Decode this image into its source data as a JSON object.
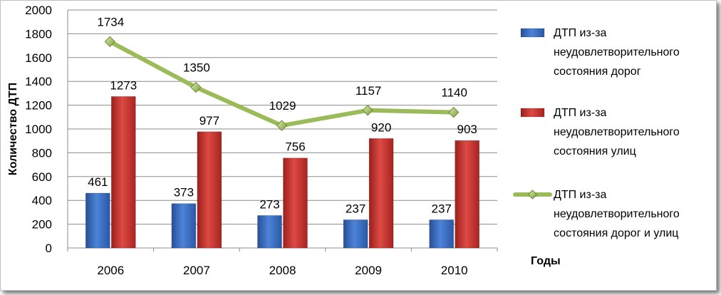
{
  "chart_data": {
    "type": "bar",
    "categories": [
      "2006",
      "2007",
      "2008",
      "2009",
      "2010"
    ],
    "series": [
      {
        "name": "ДТП из-за неудовлетворительного состояния дорог",
        "type": "bar",
        "color": "#3a6fc4",
        "values": [
          461,
          373,
          273,
          237,
          237
        ]
      },
      {
        "name": "ДТП из-за неудовлетворительного состояния улиц",
        "type": "bar",
        "color": "#c8302c",
        "values": [
          1273,
          977,
          756,
          920,
          903
        ]
      },
      {
        "name": "ДТП из-за неудовлетворительного состояния дорог и улиц",
        "type": "line",
        "color": "#9bbb59",
        "values": [
          1734,
          1350,
          1029,
          1157,
          1140
        ]
      }
    ],
    "ylim": [
      0,
      2000
    ],
    "yticks": [
      "0",
      "200",
      "400",
      "600",
      "800",
      "1000",
      "1200",
      "1400",
      "1600",
      "1800",
      "2000"
    ],
    "ylabel": "Количество ДТП",
    "xlabel": "Годы",
    "grid": true,
    "legend_position": "right"
  }
}
